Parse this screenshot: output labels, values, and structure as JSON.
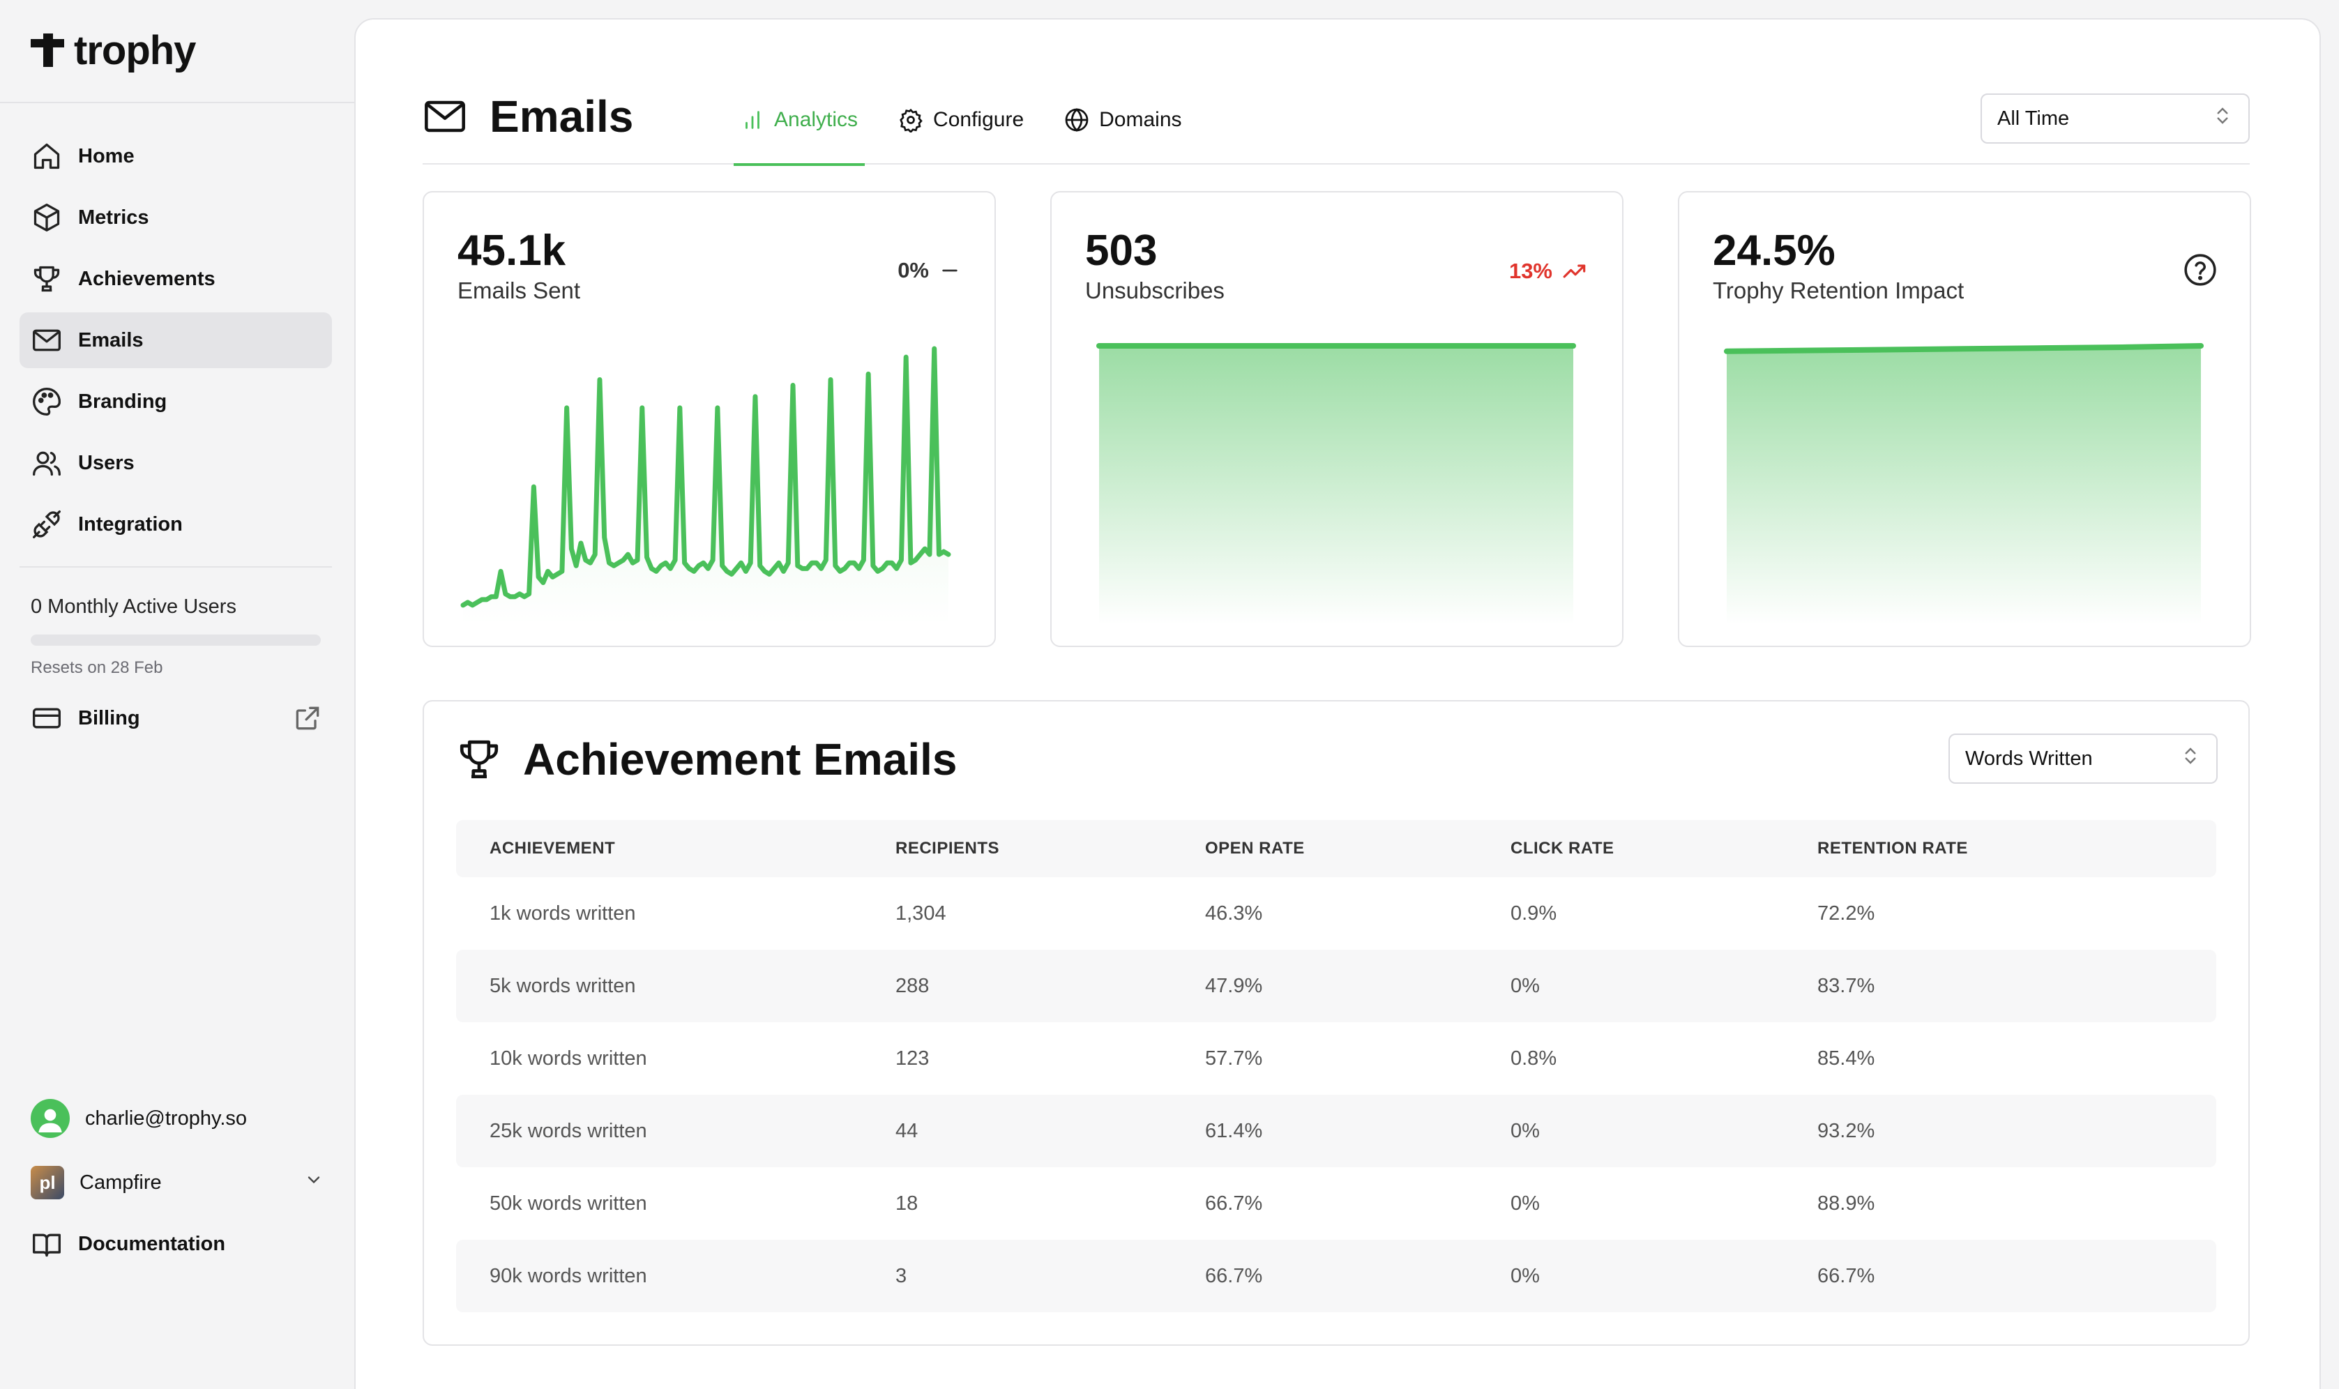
{
  "brand": {
    "name": "trophy"
  },
  "sidebar": {
    "items": [
      {
        "label": "Home",
        "icon": "home-icon"
      },
      {
        "label": "Metrics",
        "icon": "cube-icon"
      },
      {
        "label": "Achievements",
        "icon": "trophy-icon"
      },
      {
        "label": "Emails",
        "icon": "mail-icon",
        "active": true
      },
      {
        "label": "Branding",
        "icon": "palette-icon"
      },
      {
        "label": "Users",
        "icon": "users-icon"
      },
      {
        "label": "Integration",
        "icon": "plug-icon"
      }
    ],
    "mau_text": "0 Monthly Active Users",
    "mau_progress": 0,
    "resets_text": "Resets on 28 Feb",
    "billing_label": "Billing",
    "user_email": "charlie@trophy.so",
    "org_name": "Campfire",
    "org_logo_text": "pl",
    "docs_label": "Documentation"
  },
  "header": {
    "title": "Emails",
    "tabs": [
      {
        "label": "Analytics",
        "icon": "bar-chart-icon",
        "active": true
      },
      {
        "label": "Configure",
        "icon": "gear-icon"
      },
      {
        "label": "Domains",
        "icon": "globe-icon"
      }
    ],
    "range_select": "All Time"
  },
  "stats": [
    {
      "value": "45.1k",
      "label": "Emails Sent",
      "delta": "0%",
      "delta_icon": "dash-icon"
    },
    {
      "value": "503",
      "label": "Unsubscribes",
      "delta": "13%",
      "delta_icon": "trend-up-icon",
      "delta_color": "#e0342c"
    },
    {
      "value": "24.5%",
      "label": "Trophy Retention Impact",
      "delta_icon": "help-circle-icon"
    }
  ],
  "chart_data": [
    {
      "type": "line",
      "series": [
        {
          "values": [
            2,
            3,
            2,
            3,
            4,
            4,
            5,
            5,
            14,
            6,
            5,
            5,
            6,
            5,
            6,
            44,
            12,
            10,
            14,
            12,
            13,
            14,
            72,
            22,
            16,
            24,
            18,
            17,
            20,
            82,
            26,
            17,
            16,
            17,
            18,
            20,
            17,
            18,
            72,
            19,
            15,
            14,
            16,
            17,
            15,
            18,
            72,
            17,
            15,
            14,
            16,
            17,
            15,
            18,
            72,
            16,
            14,
            13,
            15,
            17,
            14,
            17,
            76,
            16,
            14,
            13,
            15,
            17,
            14,
            17,
            80,
            16,
            15,
            15,
            17,
            17,
            15,
            18,
            82,
            16,
            14,
            15,
            17,
            17,
            15,
            18,
            84,
            16,
            14,
            15,
            17,
            17,
            15,
            18,
            90,
            17,
            18,
            20,
            22,
            20,
            93,
            20,
            21,
            20
          ]
        }
      ],
      "area": true
    },
    {
      "type": "area",
      "series": [
        {
          "values": [
            100,
            100,
            100,
            100,
            100,
            100
          ]
        }
      ]
    },
    {
      "type": "area",
      "series": [
        {
          "values": [
            98,
            98.3,
            98.6,
            98.9,
            99.2,
            99.5,
            100
          ]
        }
      ]
    }
  ],
  "achievements": {
    "title": "Achievement Emails",
    "metric_select": "Words Written",
    "columns": [
      "ACHIEVEMENT",
      "RECIPIENTS",
      "OPEN RATE",
      "CLICK RATE",
      "RETENTION RATE"
    ],
    "rows": [
      [
        "1k words written",
        "1,304",
        "46.3%",
        "0.9%",
        "72.2%"
      ],
      [
        "5k words written",
        "288",
        "47.9%",
        "0%",
        "83.7%"
      ],
      [
        "10k words written",
        "123",
        "57.7%",
        "0.8%",
        "85.4%"
      ],
      [
        "25k words written",
        "44",
        "61.4%",
        "0%",
        "93.2%"
      ],
      [
        "50k words written",
        "18",
        "66.7%",
        "0%",
        "88.9%"
      ],
      [
        "90k words written",
        "3",
        "66.7%",
        "0%",
        "66.7%"
      ]
    ]
  },
  "colors": {
    "accent": "#4ac05a",
    "negative": "#e0342c"
  }
}
